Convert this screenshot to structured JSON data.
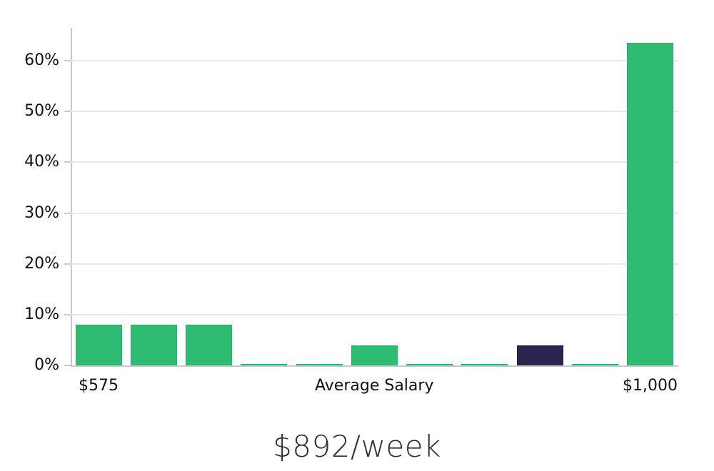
{
  "caption": "$892/week",
  "colors": {
    "bar_green": "#2ebc72",
    "bar_green_edge": "#2ab169",
    "bar_navy": "#2a2450",
    "bar_navy_edge": "#1e1a3c",
    "gridline": "#e9e9e9",
    "axis_line": "#c9c9c9",
    "tick_label": "#111111",
    "caption_text": "#2d2d2d",
    "background": "#ffffff"
  },
  "chart_data": {
    "type": "bar",
    "title": "$892/week",
    "xlabel": "",
    "ylabel": "",
    "ylim": [
      0,
      66.5
    ],
    "grid": true,
    "legend": "none",
    "y_ticks": [
      {
        "value": 0,
        "label": "0%"
      },
      {
        "value": 10,
        "label": "10%"
      },
      {
        "value": 20,
        "label": "20%"
      },
      {
        "value": 30,
        "label": "30%"
      },
      {
        "value": 40,
        "label": "40%"
      },
      {
        "value": 50,
        "label": "50%"
      },
      {
        "value": 60,
        "label": "60%"
      }
    ],
    "bars": [
      {
        "index": 0,
        "value": 8,
        "color": "green"
      },
      {
        "index": 1,
        "value": 8,
        "color": "green"
      },
      {
        "index": 2,
        "value": 8,
        "color": "green"
      },
      {
        "index": 3,
        "value": 0.3,
        "color": "green"
      },
      {
        "index": 4,
        "value": 0.3,
        "color": "green"
      },
      {
        "index": 5,
        "value": 4,
        "color": "green"
      },
      {
        "index": 6,
        "value": 0.3,
        "color": "green"
      },
      {
        "index": 7,
        "value": 0.3,
        "color": "green"
      },
      {
        "index": 8,
        "value": 4,
        "color": "navy"
      },
      {
        "index": 9,
        "value": 0.3,
        "color": "green"
      },
      {
        "index": 10,
        "value": 63.5,
        "color": "green"
      }
    ],
    "x_tick_labels": [
      {
        "bar_index": 0,
        "label": "$575"
      },
      {
        "bar_index": 5,
        "label": "Average Salary"
      },
      {
        "bar_index": 10,
        "label": "$1,000"
      }
    ]
  }
}
